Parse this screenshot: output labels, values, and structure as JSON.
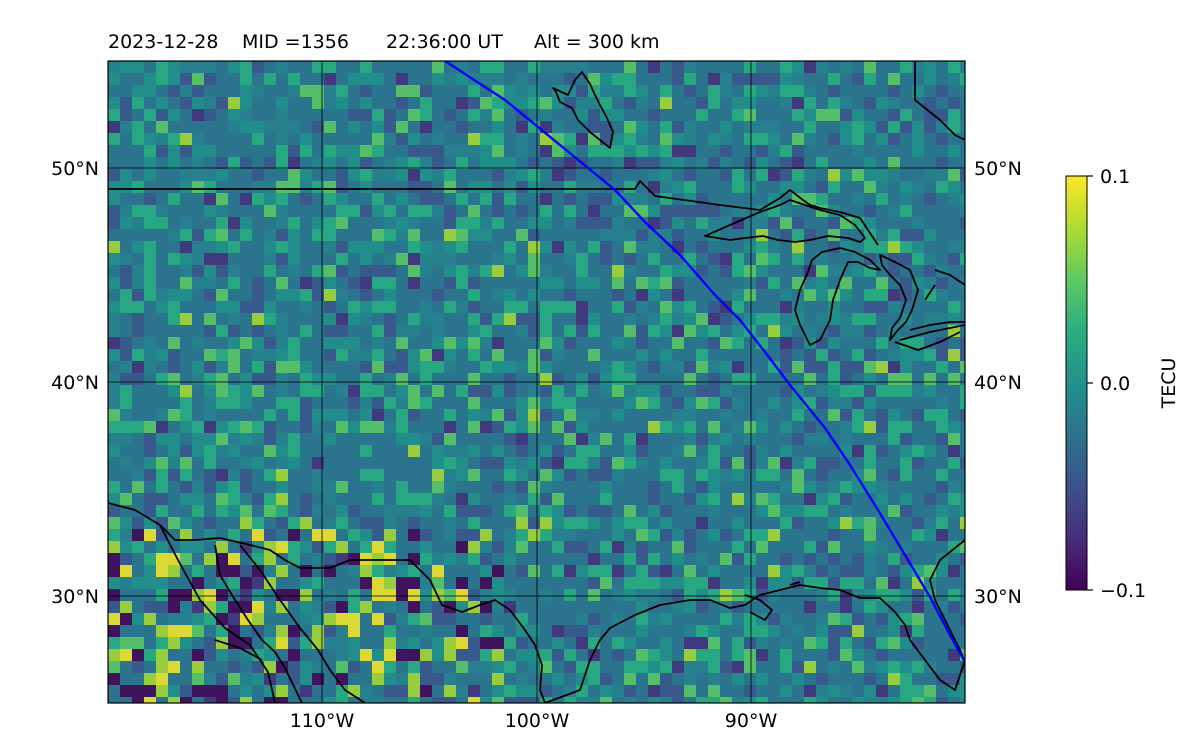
{
  "title": {
    "date": "2023-12-28",
    "mid": "MID =1356",
    "time": "22:36:00  UT",
    "alt": "Alt = 300 km"
  },
  "map": {
    "lon_range": [
      -120,
      -80
    ],
    "lat_range": [
      25,
      55
    ],
    "lat_ticks": [
      {
        "value": 50,
        "label": "50°N"
      },
      {
        "value": 40,
        "label": "40°N"
      },
      {
        "value": 30,
        "label": "30°N"
      }
    ],
    "lon_ticks": [
      {
        "value": -110,
        "label": "110°W"
      },
      {
        "value": -100,
        "label": "100°W"
      },
      {
        "value": -90,
        "label": "90°W"
      }
    ],
    "grid": true,
    "field": "detrended TEC perturbation map (viridis)",
    "terminator_color": "#0000ff"
  },
  "colorbar": {
    "label": "TECU",
    "min": -0.1,
    "max": 0.1,
    "ticks": [
      {
        "value": 0.1,
        "label": "0.1"
      },
      {
        "value": 0.0,
        "label": "0.0"
      },
      {
        "value": -0.1,
        "label": "−0.1"
      }
    ],
    "colormap": "viridis"
  }
}
